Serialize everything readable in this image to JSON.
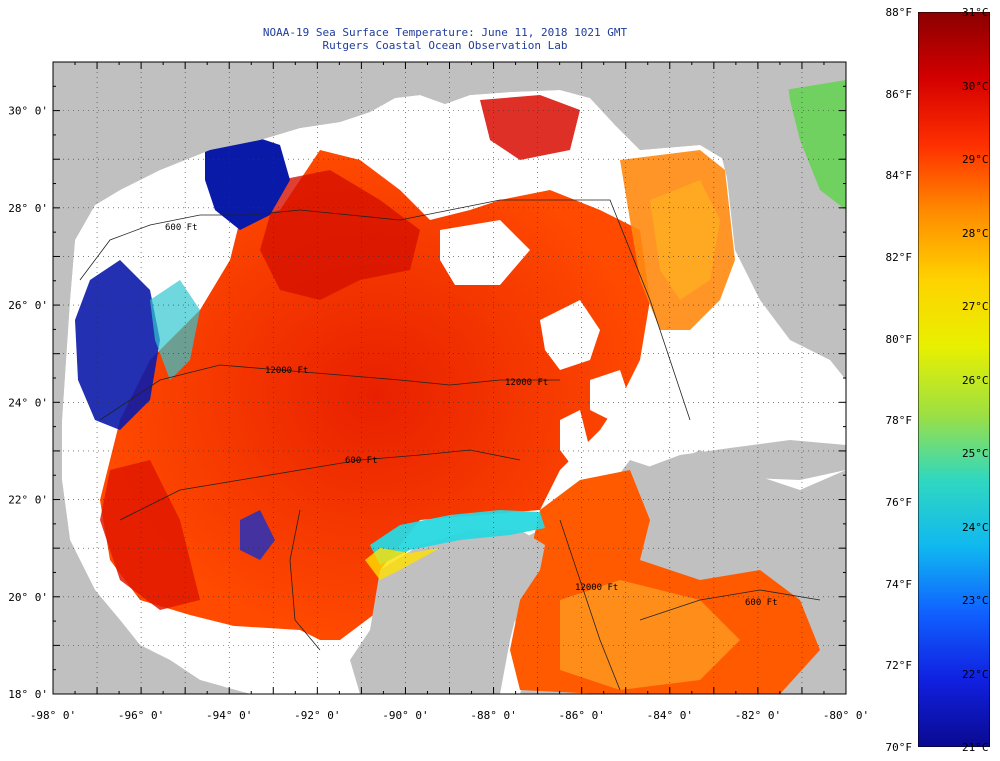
{
  "title": "NOAA-19 Sea Surface Temperature:  June 11, 2018 1021 GMT",
  "subtitle": "Rutgers Coastal Ocean Observation Lab",
  "colors": {
    "land": "#c0c0c0",
    "cloud": "#ffffff",
    "warm": "#ff2a00",
    "hot": "#d40000",
    "orange": "#ff7a00",
    "cold": "#0a1aa8",
    "loop_current_jet": "#22d8e0",
    "contour": "#222222"
  },
  "map": {
    "lon_range": [
      -98,
      -80
    ],
    "lat_range": [
      18,
      31
    ],
    "lon_ticks": [
      "-98° 0'",
      "-96° 0'",
      "-94° 0'",
      "-92° 0'",
      "-90° 0'",
      "-88° 0'",
      "-86° 0'",
      "-84° 0'",
      "-82° 0'",
      "-80° 0'"
    ],
    "lat_ticks": [
      "18° 0'",
      "20° 0'",
      "22° 0'",
      "24° 0'",
      "26° 0'",
      "28° 0'",
      "30° 0'"
    ],
    "contour_labels": [
      "600 Ft",
      "12000 Ft",
      "600 Ft",
      "12000 Ft",
      "12000 Ft",
      "600 Ft"
    ]
  },
  "colorbar": {
    "range_f": [
      70,
      88
    ],
    "range_c": [
      21,
      31
    ],
    "f_labels": [
      "88°F",
      "86°F",
      "84°F",
      "82°F",
      "80°F",
      "78°F",
      "76°F",
      "74°F",
      "72°F",
      "70°F"
    ],
    "c_labels": [
      "31°C",
      "30°C",
      "29°C",
      "28°C",
      "27°C",
      "26°C",
      "25°C",
      "24°C",
      "23°C",
      "22°C",
      "21°C"
    ],
    "stops": [
      "#8b0000",
      "#d40000",
      "#ff3000",
      "#ff8c00",
      "#ffd200",
      "#e8f000",
      "#9fe040",
      "#30d8c0",
      "#10b8f0",
      "#1060ff",
      "#1020e0",
      "#0a0a90"
    ]
  }
}
